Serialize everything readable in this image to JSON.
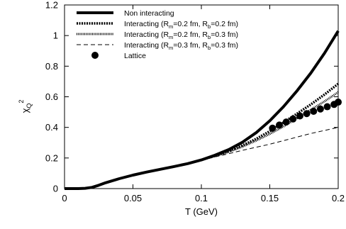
{
  "chart_data": {
    "type": "line",
    "xlabel": "T (GeV)",
    "ylabel": {
      "base": "χ",
      "sub": "Q",
      "sup": "2"
    },
    "xlim": [
      0,
      0.2
    ],
    "ylim": [
      0,
      1.2
    ],
    "xticks": [
      "0",
      "0.05",
      "0.1",
      "0.15",
      "0.2"
    ],
    "xtick_values": [
      0,
      0.05,
      0.1,
      0.15,
      0.2
    ],
    "yticks": [
      "0",
      "0.2",
      "0.4",
      "0.6",
      "0.8",
      "1",
      "1.2"
    ],
    "ytick_values": [
      0,
      0.2,
      0.4,
      0.6,
      0.8,
      1.0,
      1.2
    ],
    "grid": false,
    "legend_position": "top-left",
    "series": [
      {
        "name": "Non interacting",
        "style": "thick-solid",
        "x": [
          0,
          0.01,
          0.015,
          0.02,
          0.025,
          0.03,
          0.04,
          0.05,
          0.06,
          0.07,
          0.08,
          0.09,
          0.1,
          0.11,
          0.12,
          0.13,
          0.14,
          0.15,
          0.16,
          0.17,
          0.18,
          0.19,
          0.2
        ],
        "y": [
          0,
          0,
          0.002,
          0.008,
          0.022,
          0.038,
          0.065,
          0.088,
          0.108,
          0.126,
          0.144,
          0.163,
          0.187,
          0.218,
          0.255,
          0.303,
          0.365,
          0.443,
          0.535,
          0.64,
          0.755,
          0.885,
          1.03
        ]
      },
      {
        "name": "Interacting (R_m=0.2 fm, R_b=0.2 fm)",
        "legend_parts": [
          "Interacting (R",
          "m",
          "=0.2 fm, R",
          "b",
          "=0.2 fm)"
        ],
        "style": "thick-dotted",
        "x": [
          0.1,
          0.11,
          0.12,
          0.13,
          0.14,
          0.15,
          0.16,
          0.17,
          0.18,
          0.19,
          0.2
        ],
        "y": [
          0.187,
          0.214,
          0.245,
          0.282,
          0.325,
          0.375,
          0.432,
          0.49,
          0.55,
          0.615,
          0.685
        ]
      },
      {
        "name": "Interacting (R_m=0.2 fm, R_b=0.3 fm)",
        "legend_parts": [
          "Interacting (R",
          "m",
          "=0.2 fm, R",
          "b",
          "=0.3 fm)"
        ],
        "style": "medium-dotted",
        "x": [
          0.1,
          0.11,
          0.12,
          0.13,
          0.14,
          0.15,
          0.16,
          0.17,
          0.18,
          0.19,
          0.2
        ],
        "y": [
          0.187,
          0.212,
          0.24,
          0.274,
          0.313,
          0.357,
          0.406,
          0.46,
          0.515,
          0.57,
          0.63
        ]
      },
      {
        "name": "Interacting (R_m=0.3 fm, R_b=0.3 fm)",
        "legend_parts": [
          "Interacting (R",
          "m",
          "=0.3 fm, R",
          "b",
          "=0.3 fm)"
        ],
        "style": "dashed",
        "x": [
          0.1,
          0.11,
          0.12,
          0.13,
          0.14,
          0.15,
          0.16,
          0.17,
          0.18,
          0.19,
          0.2
        ],
        "y": [
          0.187,
          0.207,
          0.228,
          0.25,
          0.27,
          0.29,
          0.313,
          0.337,
          0.36,
          0.38,
          0.4
        ]
      },
      {
        "name": "Lattice",
        "style": "markers",
        "x": [
          0.152,
          0.157,
          0.162,
          0.167,
          0.172,
          0.177,
          0.182,
          0.187,
          0.192,
          0.197,
          0.2
        ],
        "y": [
          0.395,
          0.415,
          0.435,
          0.455,
          0.475,
          0.49,
          0.505,
          0.52,
          0.535,
          0.55,
          0.565
        ]
      }
    ]
  }
}
